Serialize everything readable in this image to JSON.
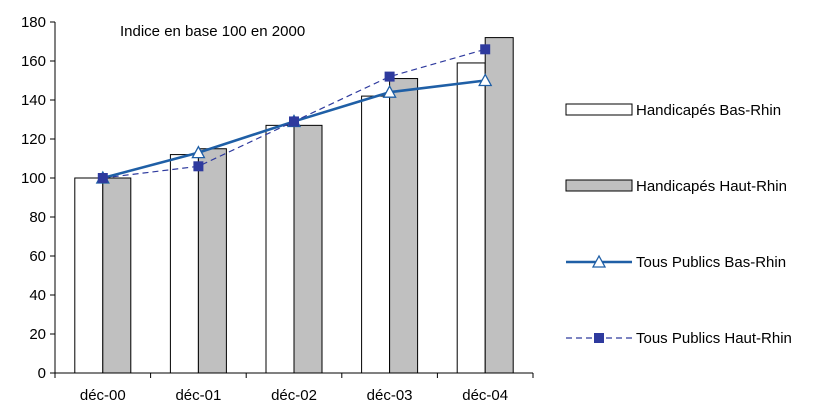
{
  "chart_data": {
    "type": "bar",
    "annotation": "Indice en base 100 en 2000",
    "categories": [
      "déc-00",
      "déc-01",
      "déc-02",
      "déc-03",
      "déc-04"
    ],
    "ylim": [
      0,
      180
    ],
    "yticks": [
      "0",
      "20",
      "40",
      "60",
      "80",
      "100",
      "120",
      "140",
      "160",
      "180"
    ],
    "grid": false,
    "legend_position": "right",
    "series": [
      {
        "name": "Handicapés Bas-Rhin",
        "kind": "bar",
        "color": "#ffffff",
        "values": [
          100,
          112,
          127,
          142,
          159
        ]
      },
      {
        "name": "Handicapés Haut-Rhin",
        "kind": "bar",
        "color": "#c0c0c0",
        "values": [
          100,
          115,
          127,
          151,
          172
        ]
      },
      {
        "name": "Tous Publics Bas-Rhin",
        "kind": "line",
        "color": "#1f5fa6",
        "marker": "triangle",
        "values": [
          100,
          113,
          129,
          144,
          150
        ]
      },
      {
        "name": "Tous Publics Haut-Rhin",
        "kind": "line",
        "color": "#2e3a9e",
        "marker": "square",
        "dashed": true,
        "values": [
          100,
          106,
          129,
          152,
          166
        ]
      }
    ]
  }
}
